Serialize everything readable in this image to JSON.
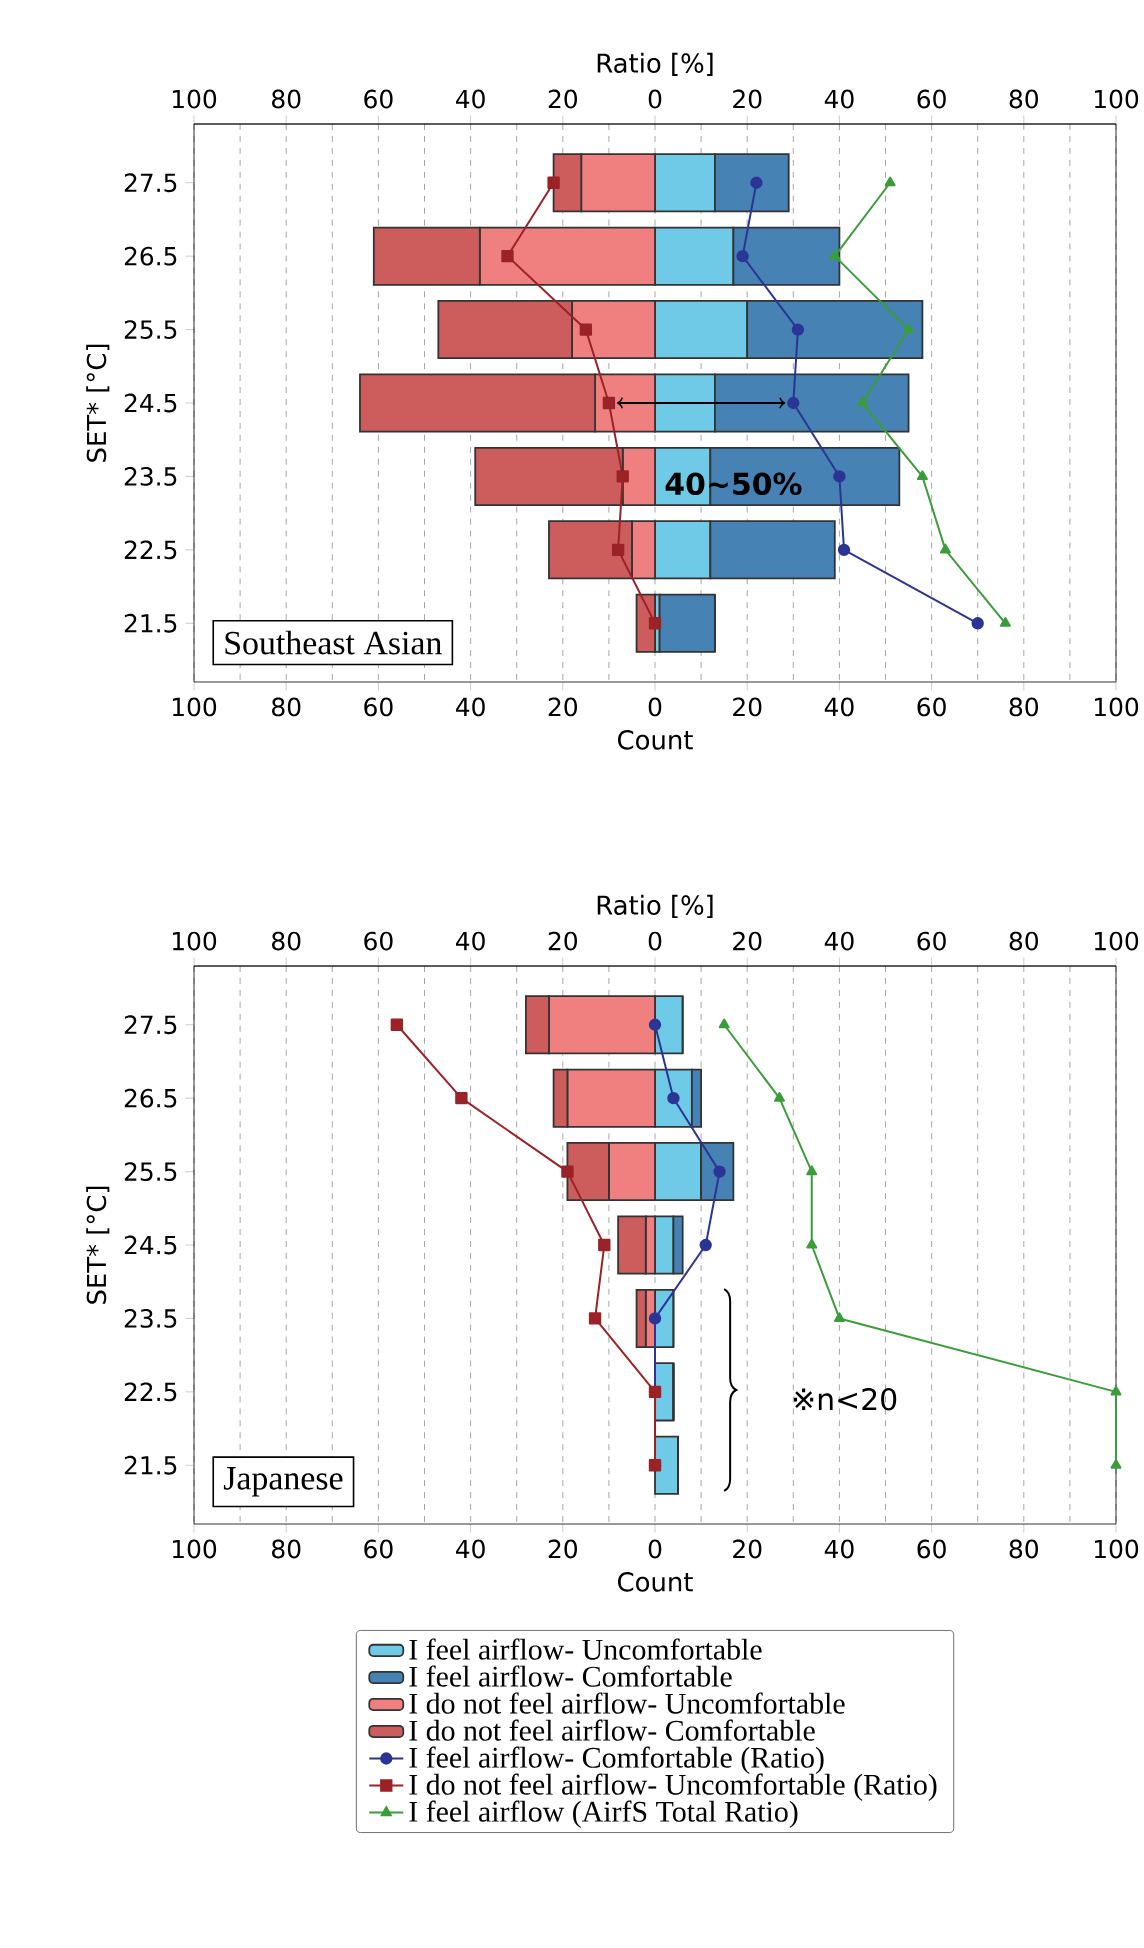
{
  "chart_data": [
    {
      "type": "bar",
      "orientation": "horizontal",
      "stacked": true,
      "title": "Southeast Asian",
      "xlabel": "Count",
      "x2label": "Ratio [%]",
      "ylabel": "SET* [°C]",
      "categories": [
        "27.5",
        "26.5",
        "25.5",
        "24.5",
        "23.5",
        "22.5",
        "21.5"
      ],
      "xlim": [
        -100,
        100
      ],
      "xticks": [
        {
          "value": -100,
          "label": "100"
        },
        {
          "value": -80,
          "label": "80"
        },
        {
          "value": -60,
          "label": "60"
        },
        {
          "value": -40,
          "label": "40"
        },
        {
          "value": -20,
          "label": "20"
        },
        0,
        20,
        40,
        60,
        80,
        100
      ],
      "x2lim": [
        -100,
        100
      ],
      "x2ticks": [
        {
          "value": -100,
          "label": "100"
        },
        {
          "value": -80,
          "label": "80"
        },
        {
          "value": -60,
          "label": "60"
        },
        {
          "value": -40,
          "label": "40"
        },
        {
          "value": -20,
          "label": "20"
        },
        0,
        20,
        40,
        60,
        80,
        100
      ],
      "grid": "x",
      "annotations": [
        "40∼50%"
      ],
      "series": [
        {
          "color": "#6ecae6",
          "values": [
            13,
            17,
            20,
            13,
            12,
            12,
            1
          ]
        },
        {
          "color": "#4682b4",
          "values": [
            16,
            23,
            38,
            42,
            41,
            27,
            12
          ]
        },
        {
          "color": "#f08080",
          "values": [
            -16,
            -38,
            -18,
            -13,
            -7,
            -5,
            0
          ]
        },
        {
          "color": "#cd5c5c",
          "values": [
            -6,
            -23,
            -29,
            -51,
            -32,
            -18,
            -4
          ]
        },
        {
          "type": "line",
          "axis": "x2",
          "marker": "circle",
          "color": "#2a3596",
          "values": [
            22,
            19,
            31,
            30,
            40,
            41,
            70
          ]
        },
        {
          "type": "line",
          "axis": "x2",
          "marker": "square",
          "color": "#9b2226",
          "values": [
            -22,
            -32,
            -15,
            -10,
            -7,
            -8,
            0
          ]
        },
        {
          "type": "line",
          "axis": "x2",
          "marker": "triangle",
          "color": "#3a9d3a",
          "values": [
            51,
            39,
            55,
            45,
            58,
            63,
            76
          ]
        }
      ]
    },
    {
      "type": "bar",
      "orientation": "horizontal",
      "stacked": true,
      "title": "Japanese",
      "xlabel": "Count",
      "x2label": "Ratio [%]",
      "ylabel": "SET* [°C]",
      "categories": [
        "27.5",
        "26.5",
        "25.5",
        "24.5",
        "23.5",
        "22.5",
        "21.5"
      ],
      "xlim": [
        -100,
        100
      ],
      "xticks": [
        {
          "value": -100,
          "label": "100"
        },
        {
          "value": -80,
          "label": "80"
        },
        {
          "value": -60,
          "label": "60"
        },
        {
          "value": -40,
          "label": "40"
        },
        {
          "value": -20,
          "label": "20"
        },
        0,
        20,
        40,
        60,
        80,
        100
      ],
      "x2lim": [
        -100,
        100
      ],
      "x2ticks": [
        {
          "value": -100,
          "label": "100"
        },
        {
          "value": -80,
          "label": "80"
        },
        {
          "value": -60,
          "label": "60"
        },
        {
          "value": -40,
          "label": "40"
        },
        {
          "value": -20,
          "label": "20"
        },
        0,
        20,
        40,
        60,
        80,
        100
      ],
      "grid": "x",
      "legend": "bottom",
      "annotations": [
        "※n<20"
      ],
      "series": [
        {
          "name": "I feel airflow- Uncomfortable",
          "color": "#6ecae6",
          "values": [
            6,
            8,
            10,
            4,
            4,
            4,
            5
          ]
        },
        {
          "name": "I feel airflow- Comfortable",
          "color": "#4682b4",
          "values": [
            0,
            2,
            7,
            2,
            0,
            0,
            0
          ]
        },
        {
          "name": "I do not feel airflow- Uncomfortable",
          "color": "#f08080",
          "values": [
            -23,
            -19,
            -10,
            -2,
            -2,
            0,
            0
          ]
        },
        {
          "name": "I do not feel airflow- Comfortable",
          "color": "#cd5c5c",
          "values": [
            -5,
            -3,
            -9,
            -6,
            -2,
            0,
            0
          ]
        },
        {
          "name": "I feel airflow- Comfortable (Ratio)",
          "type": "line",
          "axis": "x2",
          "marker": "circle",
          "color": "#2a3596",
          "values": [
            0,
            4,
            14,
            11,
            0,
            0,
            0
          ]
        },
        {
          "name": "I do not feel airflow- Uncomfortable (Ratio)",
          "type": "line",
          "axis": "x2",
          "marker": "square",
          "color": "#9b2226",
          "values": [
            -56,
            -42,
            -19,
            -11,
            -13,
            0,
            0
          ]
        },
        {
          "name": "I feel airflow (AirfS Total Ratio)",
          "type": "line",
          "axis": "x2",
          "marker": "triangle",
          "color": "#3a9d3a",
          "values": [
            15,
            27,
            34,
            34,
            40,
            100,
            100
          ]
        }
      ]
    }
  ]
}
